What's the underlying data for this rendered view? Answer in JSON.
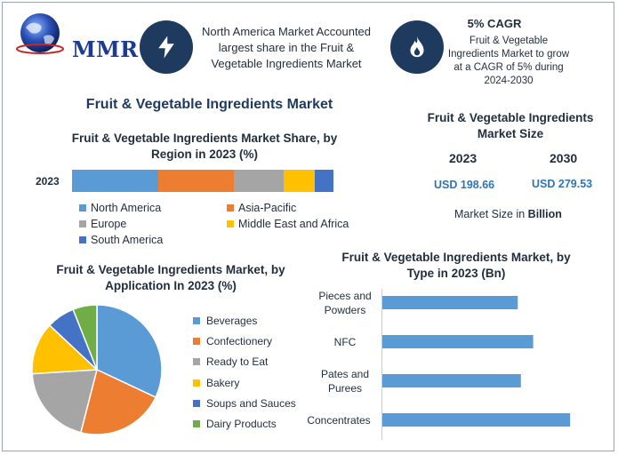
{
  "brand": {
    "logo_text": "MMR"
  },
  "header": {
    "stat_text": "North America Market Accounted largest share in the Fruit & Vegetable Ingredients Market",
    "cagr_title": "5% CAGR",
    "cagr_text": "Fruit & Vegetable Ingredients Market to grow at a CAGR of 5% during 2024-2030",
    "icons": [
      "lightning-bolt-icon",
      "flame-icon"
    ]
  },
  "main_title": "Fruit & Vegetable Ingredients Market",
  "market_size": {
    "title": "Fruit & Vegetable Ingredients Market Size",
    "year_a": "2023",
    "year_b": "2030",
    "value_a": "USD 198.66",
    "value_b": "USD 279.53",
    "note_prefix": "Market Size in ",
    "note_unit": "Billion"
  },
  "colors": {
    "navy": "#1e3a5f",
    "blue": "#5b9bd5",
    "orange": "#ed7d31",
    "gray": "#a5a5a5",
    "yellow": "#ffc000",
    "darkblue": "#4472c4",
    "green": "#70ad47",
    "accent_text": "#2d75b6"
  },
  "chart_data": [
    {
      "type": "bar",
      "orientation": "horizontal-stacked",
      "title": "Fruit & Vegetable Ingredients Market Share, by Region in 2023 (%)",
      "categories": [
        "2023"
      ],
      "series": [
        {
          "name": "North America",
          "values": [
            33
          ],
          "color": "#5b9bd5"
        },
        {
          "name": "Asia-Pacific",
          "values": [
            29
          ],
          "color": "#ed7d31"
        },
        {
          "name": "Europe",
          "values": [
            19
          ],
          "color": "#a5a5a5"
        },
        {
          "name": "Middle East and Africa",
          "values": [
            12
          ],
          "color": "#ffc000"
        },
        {
          "name": "South America",
          "values": [
            7
          ],
          "color": "#4472c4"
        }
      ],
      "xlim": [
        0,
        100
      ],
      "legend": "bottom"
    },
    {
      "type": "pie",
      "title": "Fruit & Vegetable Ingredients Market, by Application In 2023 (%)",
      "labels": [
        "Beverages",
        "Confectionery",
        "Ready to Eat",
        "Bakery",
        "Soups and Sauces",
        "Dairy Products"
      ],
      "values": [
        32,
        22,
        20,
        13,
        7,
        6
      ],
      "colors": [
        "#5b9bd5",
        "#ed7d31",
        "#a5a5a5",
        "#ffc000",
        "#4472c4",
        "#70ad47"
      ],
      "legend": "right"
    },
    {
      "type": "bar",
      "orientation": "horizontal",
      "title": "Fruit & Vegetable Ingredients Market, by Type in 2023 (Bn)",
      "categories": [
        "Pieces and Powders",
        "NFC",
        "Pates and Purees",
        "Concentrates"
      ],
      "values": [
        44,
        49,
        45,
        61
      ],
      "xlim": [
        0,
        65
      ],
      "color": "#5b9bd5",
      "grid": false
    }
  ]
}
